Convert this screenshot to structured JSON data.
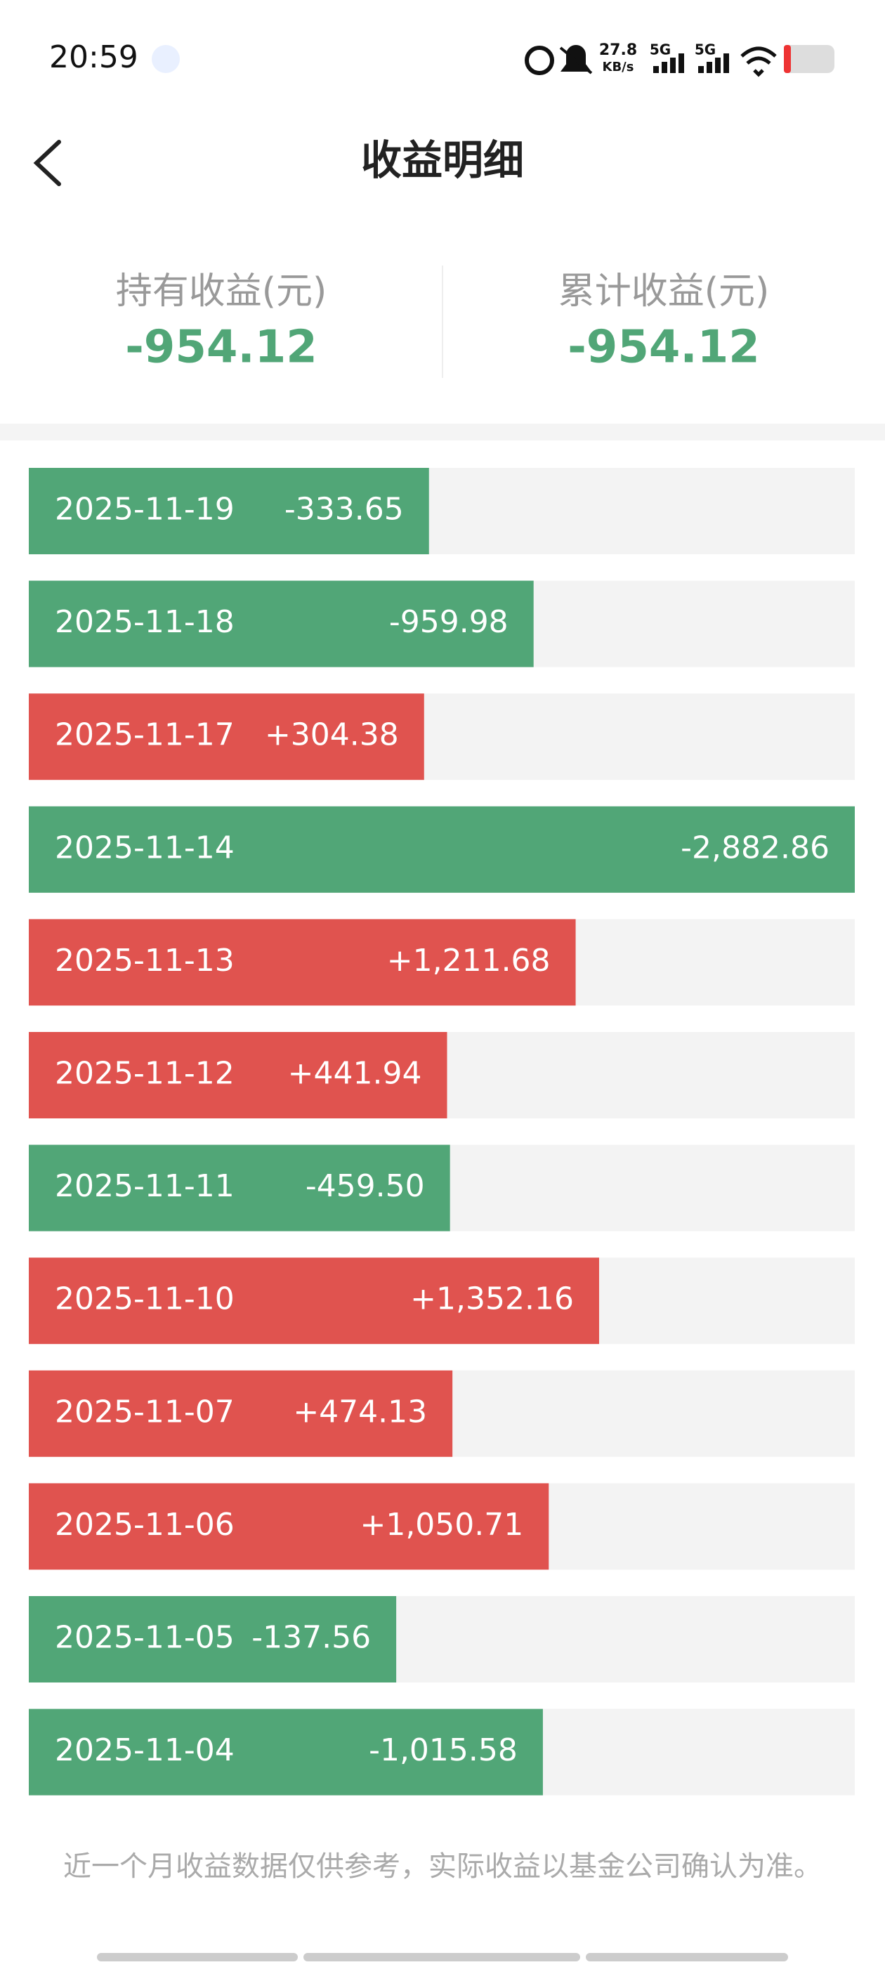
{
  "status_bar": {
    "time": "20:59",
    "net_speed": "27.8",
    "net_unit": "KB/s",
    "signal_1": "5G",
    "signal_2": "5G"
  },
  "header": {
    "title": "收益明细"
  },
  "summary": {
    "holding_label": "持有收益(元)",
    "holding_value": "-954.12",
    "cumulative_label": "累计收益(元)",
    "cumulative_value": "-954.12"
  },
  "positive_color": "#e0534f",
  "negative_color": "#51a677",
  "rows": [
    {
      "date": "2025-11-19",
      "value": -333.65,
      "label": "-333.65"
    },
    {
      "date": "2025-11-18",
      "value": -959.98,
      "label": "-959.98"
    },
    {
      "date": "2025-11-17",
      "value": 304.38,
      "label": "+304.38"
    },
    {
      "date": "2025-11-14",
      "value": -2882.86,
      "label": "-2,882.86"
    },
    {
      "date": "2025-11-13",
      "value": 1211.68,
      "label": "+1,211.68"
    },
    {
      "date": "2025-11-12",
      "value": 441.94,
      "label": "+441.94"
    },
    {
      "date": "2025-11-11",
      "value": -459.5,
      "label": "-459.50"
    },
    {
      "date": "2025-11-10",
      "value": 1352.16,
      "label": "+1,352.16"
    },
    {
      "date": "2025-11-07",
      "value": 474.13,
      "label": "+474.13"
    },
    {
      "date": "2025-11-06",
      "value": 1050.71,
      "label": "+1,050.71"
    },
    {
      "date": "2025-11-05",
      "value": -137.56,
      "label": "-137.56"
    },
    {
      "date": "2025-11-04",
      "value": -1015.58,
      "label": "-1,015.58"
    }
  ],
  "footer": {
    "note": "近一个月收益数据仅供参考，实际收益以基金公司确认为准。"
  }
}
